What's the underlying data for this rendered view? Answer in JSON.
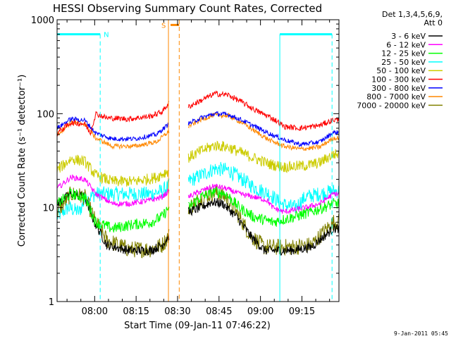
{
  "chart_data": {
    "type": "line",
    "title": "HESSI Observing Summary Count Rates, Corrected",
    "xlabel": "Start Time (09-Jan-11 07:46:22)",
    "ylabel": "Corrected Count Rate (s⁻¹ detector⁻¹)",
    "x_units": "minutes after 07:46:22",
    "xlim": [
      0,
      102
    ],
    "ylim": [
      1,
      1000
    ],
    "y_scale": "log",
    "x_ticks": [
      {
        "label": "08:00",
        "x": 13.6
      },
      {
        "label": "08:15",
        "x": 28.6
      },
      {
        "label": "08:30",
        "x": 43.6
      },
      {
        "label": "08:45",
        "x": 58.6
      },
      {
        "label": "09:00",
        "x": 73.6
      },
      {
        "label": "09:15",
        "x": 88.6
      }
    ],
    "y_ticks": [
      {
        "label": "1",
        "y": 1
      },
      {
        "label": "10",
        "y": 10
      },
      {
        "label": "100",
        "y": 100
      },
      {
        "label": "1000",
        "y": 1000
      }
    ],
    "legend": {
      "position": "right",
      "header": [
        "Det 1,3,4,5,6,9,",
        "Att 0"
      ],
      "entries": [
        {
          "label": "3 - 6 keV",
          "color": "#000000"
        },
        {
          "label": "6 - 12 keV",
          "color": "#ff00ff"
        },
        {
          "label": "12 - 25 keV",
          "color": "#00ff00"
        },
        {
          "label": "25 - 50 keV",
          "color": "#00ffff"
        },
        {
          "label": "50 - 100 keV",
          "color": "#cccc00"
        },
        {
          "label": "100 - 300 keV",
          "color": "#ff0000"
        },
        {
          "label": "300 - 800 keV",
          "color": "#0000ff"
        },
        {
          "label": "800 - 7000 keV",
          "color": "#ff8800"
        },
        {
          "label": "7000 - 20000 keV",
          "color": "#808000"
        }
      ]
    },
    "segments": [
      [
        0,
        40.5
      ],
      [
        47.5,
        102
      ]
    ],
    "series": [
      {
        "name": "3 - 6 keV",
        "color": "#000000",
        "noise": 0.05,
        "points": [
          [
            0,
            11
          ],
          [
            5,
            14
          ],
          [
            10,
            13
          ],
          [
            13.5,
            7
          ],
          [
            18,
            4
          ],
          [
            26,
            3.5
          ],
          [
            34,
            3.5
          ],
          [
            38,
            4
          ],
          [
            40.5,
            5
          ],
          [
            47.5,
            9
          ],
          [
            52,
            10
          ],
          [
            56,
            11.5
          ],
          [
            60,
            11
          ],
          [
            65,
            8
          ],
          [
            70,
            5
          ],
          [
            75,
            3.5
          ],
          [
            85,
            3.5
          ],
          [
            92,
            3.8
          ],
          [
            100,
            6
          ]
        ]
      },
      {
        "name": "6 - 12 keV",
        "color": "#ff00ff",
        "noise": 0.03,
        "points": [
          [
            0,
            16
          ],
          [
            5,
            21
          ],
          [
            10,
            20
          ],
          [
            14,
            14
          ],
          [
            20,
            11
          ],
          [
            26,
            11
          ],
          [
            34,
            12
          ],
          [
            38,
            13
          ],
          [
            40.5,
            15
          ],
          [
            47.5,
            13
          ],
          [
            52,
            15
          ],
          [
            57,
            17
          ],
          [
            61,
            16
          ],
          [
            66,
            14
          ],
          [
            71,
            13
          ],
          [
            76,
            12
          ],
          [
            78,
            10
          ],
          [
            82,
            9
          ],
          [
            90,
            10
          ],
          [
            95,
            11
          ],
          [
            100,
            14
          ]
        ]
      },
      {
        "name": "12 - 25 keV",
        "color": "#00ff00",
        "noise": 0.06,
        "points": [
          [
            0,
            11
          ],
          [
            5,
            14
          ],
          [
            10,
            13
          ],
          [
            14,
            7
          ],
          [
            20,
            6
          ],
          [
            26,
            6.5
          ],
          [
            34,
            7
          ],
          [
            38,
            8
          ],
          [
            40.5,
            10
          ],
          [
            47.5,
            10
          ],
          [
            52,
            13
          ],
          [
            57,
            15
          ],
          [
            61,
            14
          ],
          [
            66,
            10
          ],
          [
            71,
            8
          ],
          [
            78,
            7
          ],
          [
            86,
            8
          ],
          [
            92,
            9
          ],
          [
            100,
            11
          ]
        ]
      },
      {
        "name": "25 - 50 keV",
        "color": "#00ffff",
        "noise": 0.08,
        "points": [
          [
            0,
            8
          ],
          [
            4,
            10
          ],
          [
            8,
            9
          ],
          [
            10,
            12
          ],
          [
            14,
            14
          ],
          [
            20,
            14
          ],
          [
            28,
            14
          ],
          [
            34,
            14
          ],
          [
            38,
            15
          ],
          [
            40.5,
            17
          ],
          [
            47.5,
            19
          ],
          [
            52,
            22
          ],
          [
            57,
            26
          ],
          [
            62,
            25
          ],
          [
            67,
            20
          ],
          [
            72,
            16
          ],
          [
            77,
            14
          ],
          [
            81,
            11
          ],
          [
            86,
            10
          ],
          [
            90,
            13
          ],
          [
            95,
            14
          ],
          [
            100,
            15
          ]
        ]
      },
      {
        "name": "50 - 100 keV",
        "color": "#cccc00",
        "noise": 0.06,
        "points": [
          [
            0,
            25
          ],
          [
            5,
            33
          ],
          [
            10,
            31
          ],
          [
            14,
            22
          ],
          [
            20,
            19
          ],
          [
            28,
            19
          ],
          [
            36,
            21
          ],
          [
            40.5,
            25
          ],
          [
            47.5,
            34
          ],
          [
            52,
            40
          ],
          [
            57,
            46
          ],
          [
            62,
            44
          ],
          [
            67,
            38
          ],
          [
            72,
            33
          ],
          [
            77,
            29
          ],
          [
            82,
            27
          ],
          [
            90,
            28
          ],
          [
            95,
            30
          ],
          [
            100,
            37
          ]
        ]
      },
      {
        "name": "100 - 300 keV",
        "color": "#ff0000",
        "noise": 0.03,
        "points": [
          [
            0,
            62
          ],
          [
            5,
            80
          ],
          [
            10,
            78
          ],
          [
            12,
            62
          ],
          [
            14,
            100
          ],
          [
            18,
            90
          ],
          [
            26,
            88
          ],
          [
            34,
            94
          ],
          [
            38,
            105
          ],
          [
            40.5,
            130
          ],
          [
            47.5,
            118
          ],
          [
            52,
            138
          ],
          [
            57,
            163
          ],
          [
            62,
            158
          ],
          [
            67,
            132
          ],
          [
            72,
            108
          ],
          [
            77,
            92
          ],
          [
            80,
            82
          ],
          [
            82,
            73
          ],
          [
            88,
            70
          ],
          [
            95,
            75
          ],
          [
            100,
            86
          ]
        ]
      },
      {
        "name": "300 - 800 keV",
        "color": "#0000ff",
        "noise": 0.025,
        "points": [
          [
            0,
            70
          ],
          [
            5,
            88
          ],
          [
            10,
            85
          ],
          [
            14,
            62
          ],
          [
            20,
            54
          ],
          [
            28,
            54
          ],
          [
            36,
            60
          ],
          [
            40.5,
            78
          ],
          [
            47.5,
            78
          ],
          [
            52,
            90
          ],
          [
            57,
            100
          ],
          [
            62,
            98
          ],
          [
            67,
            85
          ],
          [
            72,
            72
          ],
          [
            77,
            61
          ],
          [
            82,
            53
          ],
          [
            88,
            47
          ],
          [
            95,
            50
          ],
          [
            100,
            63
          ]
        ]
      },
      {
        "name": "800 - 7000 keV",
        "color": "#ff8800",
        "noise": 0.025,
        "points": [
          [
            0,
            60
          ],
          [
            5,
            80
          ],
          [
            10,
            78
          ],
          [
            14,
            55
          ],
          [
            20,
            45
          ],
          [
            28,
            45
          ],
          [
            36,
            50
          ],
          [
            40.5,
            65
          ],
          [
            47.5,
            73
          ],
          [
            52,
            86
          ],
          [
            57,
            97
          ],
          [
            62,
            95
          ],
          [
            67,
            80
          ],
          [
            72,
            64
          ],
          [
            77,
            52
          ],
          [
            82,
            45
          ],
          [
            88,
            42
          ],
          [
            95,
            44
          ],
          [
            100,
            55
          ]
        ]
      },
      {
        "name": "7000 - 20000 keV",
        "color": "#808000",
        "noise": 0.09,
        "points": [
          [
            0,
            9
          ],
          [
            5,
            14
          ],
          [
            10,
            13
          ],
          [
            14,
            7
          ],
          [
            18,
            4.5
          ],
          [
            26,
            3.6
          ],
          [
            34,
            3.6
          ],
          [
            38,
            4
          ],
          [
            40.5,
            5
          ],
          [
            47.5,
            10
          ],
          [
            52,
            12.5
          ],
          [
            57,
            14.5
          ],
          [
            61,
            13
          ],
          [
            66,
            8
          ],
          [
            70,
            5
          ],
          [
            75,
            3.8
          ],
          [
            85,
            3.8
          ],
          [
            92,
            4
          ],
          [
            100,
            7
          ]
        ]
      }
    ],
    "markers": {
      "night": {
        "label": "N",
        "color": "#00ffff",
        "intervals": [
          [
            0,
            15.6
          ],
          [
            80.6,
            99.5
          ]
        ],
        "level": 700
      },
      "saa": {
        "label": "S",
        "color": "#ff8800",
        "interval": [
          40.3,
          44.2
        ],
        "level": 880
      },
      "saa_edges": [
        40.3,
        44.2
      ]
    },
    "footer_date": "9-Jan-2011 05:45"
  }
}
